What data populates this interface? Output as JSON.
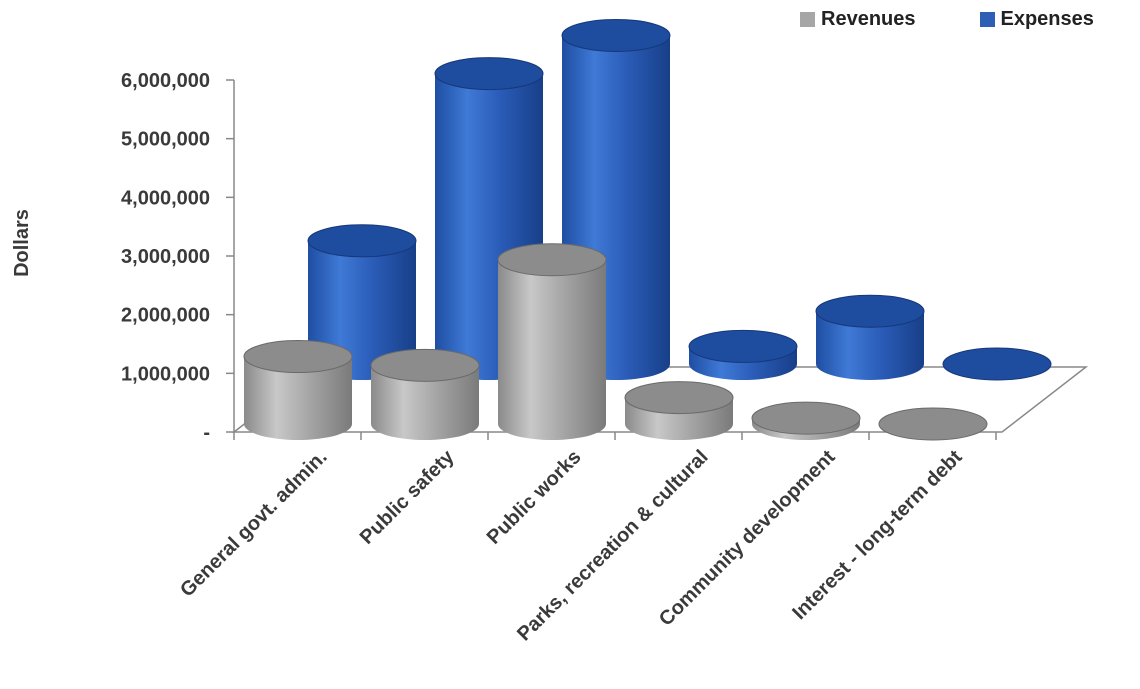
{
  "chart_data": {
    "type": "bar",
    "title": "",
    "xlabel": "",
    "ylabel": "Dollars",
    "ylim": [
      0,
      6000000
    ],
    "yticks": [
      {
        "value": 0,
        "label": "-"
      },
      {
        "value": 1000000,
        "label": "1,000,000"
      },
      {
        "value": 2000000,
        "label": "2,000,000"
      },
      {
        "value": 3000000,
        "label": "3,000,000"
      },
      {
        "value": 4000000,
        "label": "4,000,000"
      },
      {
        "value": 5000000,
        "label": "5,000,000"
      },
      {
        "value": 6000000,
        "label": "6,000,000"
      }
    ],
    "categories": [
      "General govt. admin.",
      "Public safety",
      "Public works",
      "Parks, recreation & cultural",
      "Community development",
      "Interest - long-term debt"
    ],
    "series": [
      {
        "name": "Revenues",
        "color": "#a6a6a6",
        "values": [
          1150000,
          1000000,
          2800000,
          450000,
          100000,
          0
        ]
      },
      {
        "name": "Expenses",
        "color": "#2e5fb5",
        "values": [
          2100000,
          4950000,
          5600000,
          300000,
          900000,
          0
        ]
      }
    ],
    "legend": "top-right",
    "style": "3d-cylinder",
    "grid": false
  }
}
